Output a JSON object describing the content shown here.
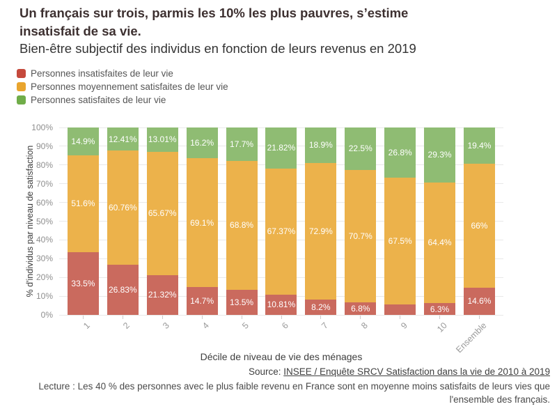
{
  "header": {
    "title": "Un français sur trois, parmis les 10% les plus pauvres, s’estime insatisfait de sa vie.",
    "subtitle": "Bien-être subjectif des individus en fonction de leurs revenus en 2019"
  },
  "legend": {
    "items": [
      {
        "label": "Personnes insatisfaites de leur vie",
        "color": "#c5493c"
      },
      {
        "label": "Personnes moyennement satisfaites de leur vie",
        "color": "#e9a52e"
      },
      {
        "label": "Personnes satisfaites de leur vie",
        "color": "#70ad49"
      }
    ]
  },
  "chart_data": {
    "type": "bar",
    "stacked": true,
    "categories": [
      "1",
      "2",
      "3",
      "4",
      "5",
      "6",
      "7",
      "8",
      "9",
      "10",
      "Ensemble"
    ],
    "series": [
      {
        "name": "Personnes insatisfaites de leur vie",
        "color": "#ca6a5e",
        "values": [
          33.5,
          26.83,
          21.32,
          14.7,
          13.5,
          10.81,
          8.2,
          6.8,
          5.7,
          6.3,
          14.6
        ],
        "display_labels": [
          "33.5%",
          "26.83%",
          "21.32%",
          "14.7%",
          "13.5%",
          "10.81%",
          "8.2%",
          "6.8%",
          null,
          "6.3%",
          "14.6%"
        ]
      },
      {
        "name": "Personnes moyennement satisfaites de leur vie",
        "color": "#ecb24b",
        "values": [
          51.6,
          60.76,
          65.67,
          69.1,
          68.8,
          67.37,
          72.9,
          70.7,
          67.5,
          64.4,
          66
        ],
        "display_labels": [
          "51.6%",
          "60.76%",
          "65.67%",
          "69.1%",
          "68.8%",
          "67.37%",
          "72.9%",
          "70.7%",
          "67.5%",
          "64.4%",
          "66%"
        ]
      },
      {
        "name": "Personnes satisfaites de leur vie",
        "color": "#8fbc73",
        "values": [
          14.9,
          12.41,
          13.01,
          16.2,
          17.7,
          21.82,
          18.9,
          22.5,
          26.8,
          29.3,
          19.4
        ],
        "display_labels": [
          "14.9%",
          "12.41%",
          "13.01%",
          "16.2%",
          "17.7%",
          "21.82%",
          "18.9%",
          "22.5%",
          "26.8%",
          "29.3%",
          "19.4%"
        ]
      }
    ],
    "title": "Bien-être subjectif des individus en fonction de leurs revenus en 2019",
    "xlabel": "Décile de niveau de vie des ménages",
    "ylabel": "% d'individus par niveau de satisfaction",
    "ylim": [
      0,
      100
    ],
    "y_ticks": [
      "0%",
      "10%",
      "20%",
      "30%",
      "40%",
      "50%",
      "60%",
      "70%",
      "80%",
      "90%",
      "100%"
    ],
    "grid": true,
    "legend_position": "top-left"
  },
  "footer": {
    "source_prefix": "Source: ",
    "source_link": "INSEE / Enquête SRCV Satisfaction dans la vie de 2010 à 2019",
    "lecture_lines": [
      "Lecture : Les 40 % des personnes avec le plus faible revenu en France sont en moyenne moins satisfaits de leurs vies que",
      "l'ensemble des français."
    ]
  }
}
